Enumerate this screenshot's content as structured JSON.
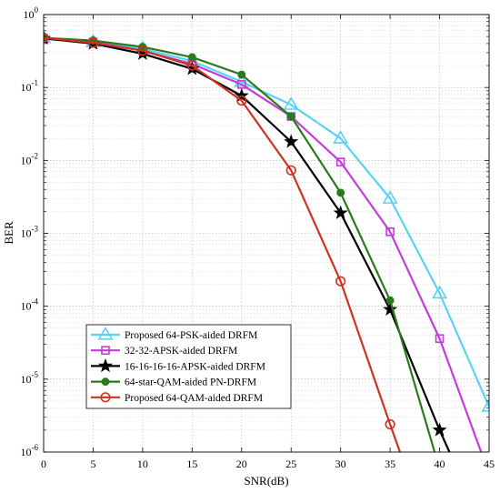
{
  "chart_data": {
    "type": "line",
    "xlabel": "SNR(dB)",
    "ylabel": "BER",
    "xlim": [
      0,
      45
    ],
    "ylim": [
      1e-06,
      1
    ],
    "yscale": "log",
    "grid": true,
    "legend_position": "bottom-left",
    "x_ticks": [
      0,
      5,
      10,
      15,
      20,
      25,
      30,
      35,
      40,
      45
    ],
    "y_ticks": [
      {
        "value": 1,
        "base": "10",
        "exp": "0"
      },
      {
        "value": 0.1,
        "base": "10",
        "exp": "-1"
      },
      {
        "value": 0.01,
        "base": "10",
        "exp": "-2"
      },
      {
        "value": 0.001,
        "base": "10",
        "exp": "-3"
      },
      {
        "value": 0.0001,
        "base": "10",
        "exp": "-4"
      },
      {
        "value": 1e-05,
        "base": "10",
        "exp": "-5"
      },
      {
        "value": 1e-06,
        "base": "10",
        "exp": "-6"
      }
    ],
    "series": [
      {
        "name": "Proposed 64-PSK-aided DRFM",
        "color": "#5ad2f4",
        "marker": "triangle",
        "x": [
          0,
          5,
          10,
          15,
          20,
          25,
          30,
          35,
          40,
          45
        ],
        "y": [
          0.48,
          0.42,
          0.34,
          0.23,
          0.12,
          0.058,
          0.02,
          0.003,
          0.00015,
          4.2e-06
        ]
      },
      {
        "name": "32-32-APSK-aided DRFM",
        "color": "#c43cdc",
        "marker": "square",
        "x": [
          0,
          5,
          10,
          15,
          20,
          25,
          30,
          35,
          40,
          44.2
        ],
        "y": [
          0.47,
          0.42,
          0.32,
          0.21,
          0.11,
          0.04,
          0.0095,
          0.00105,
          3.6e-05,
          1e-06
        ]
      },
      {
        "name": "16-16-16-16-APSK-aided DRFM",
        "color": "#000000",
        "marker": "star",
        "x": [
          0,
          5,
          10,
          15,
          20,
          25,
          30,
          35,
          40,
          41
        ],
        "y": [
          0.47,
          0.4,
          0.29,
          0.18,
          0.077,
          0.018,
          0.0019,
          9e-05,
          2e-06,
          1e-06
        ]
      },
      {
        "name": "64-star-QAM-aided PN-DRFM",
        "color": "#2a7a1a",
        "marker": "octagon",
        "x": [
          0,
          5,
          10,
          15,
          20,
          25,
          30,
          35,
          39.5
        ],
        "y": [
          0.48,
          0.44,
          0.36,
          0.26,
          0.15,
          0.04,
          0.0036,
          0.00012,
          1e-06
        ]
      },
      {
        "name": "Proposed 64-QAM-aided DRFM",
        "color": "#cc3322",
        "marker": "circle",
        "x": [
          0,
          5,
          10,
          15,
          20,
          25,
          30,
          35,
          36
        ],
        "y": [
          0.48,
          0.41,
          0.32,
          0.2,
          0.066,
          0.0073,
          0.00022,
          2.4e-06,
          1e-06
        ]
      }
    ]
  }
}
